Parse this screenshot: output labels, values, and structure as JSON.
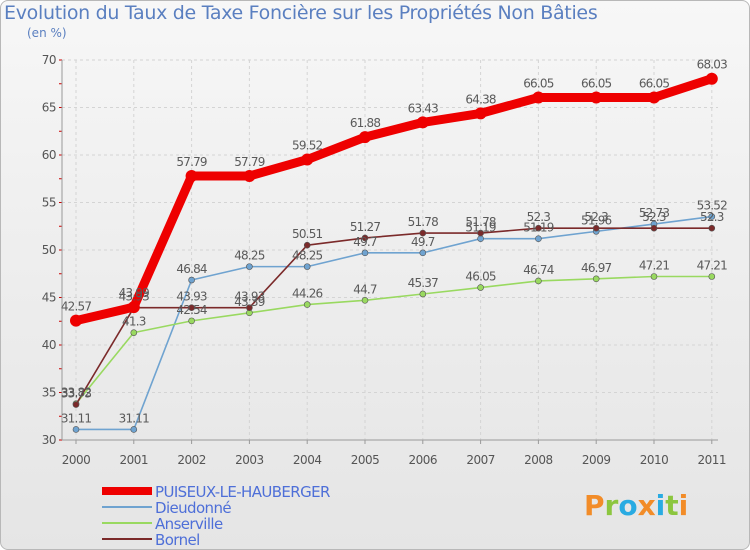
{
  "title": "Evolution du Taux de Taxe Foncière sur les Propriétés Non Bâties",
  "unit": "(en %)",
  "logo": {
    "letters": [
      "P",
      "r",
      "o",
      "x",
      "i",
      "t",
      "i"
    ],
    "colors": [
      "#f28c28",
      "#8cc63f",
      "#29abe2",
      "#f28c28",
      "#29abe2",
      "#8cc63f",
      "#f28c28"
    ]
  },
  "chart_data": {
    "type": "line",
    "title": "Evolution du Taux de Taxe Foncière sur les Propriétés Non Bâties",
    "ylabel": "(en %)",
    "xlabel": "",
    "x": [
      "2000",
      "2001",
      "2002",
      "2003",
      "2004",
      "2005",
      "2006",
      "2007",
      "2008",
      "2009",
      "2010",
      "2011"
    ],
    "ylim": [
      30,
      70
    ],
    "yticks": [
      30,
      35,
      40,
      45,
      50,
      55,
      60,
      65,
      70
    ],
    "grid": true,
    "series": [
      {
        "name": "Dieudonné",
        "color": "#6fa3d0",
        "values": [
          31.11,
          31.11,
          46.84,
          48.25,
          48.25,
          49.7,
          49.7,
          51.19,
          51.19,
          51.96,
          52.73,
          53.52
        ],
        "labels": [
          "31.11",
          "31.11",
          "46.84",
          "48.25",
          "48.25",
          "49.7",
          "49.7",
          "51.19",
          "51.19",
          "51.96",
          "52.73",
          "53.52"
        ]
      },
      {
        "name": "Anserville",
        "color": "#99d960",
        "values": [
          33.82,
          41.3,
          42.54,
          43.39,
          44.26,
          44.7,
          45.37,
          46.05,
          46.74,
          46.97,
          47.21,
          47.21
        ],
        "labels": [
          "33.82",
          "41.3",
          "42.54",
          "43.39",
          "44.26",
          "44.7",
          "45.37",
          "46.05",
          "46.74",
          "46.97",
          "47.21",
          "47.21"
        ]
      },
      {
        "name": "Bornel",
        "color": "#7b2a2a",
        "values": [
          33.73,
          43.93,
          43.93,
          43.93,
          50.51,
          51.27,
          51.78,
          51.78,
          52.3,
          52.3,
          52.3,
          52.3
        ],
        "labels": [
          "33.73",
          "43.93",
          "43.93",
          "43.93",
          "50.51",
          "51.27",
          "51.78",
          "51.78",
          "52.3",
          "52.3",
          "52.3",
          "52.3"
        ]
      },
      {
        "name": "PUISEUX-LE-HAUBERGER",
        "color": "#ee0000",
        "values": [
          42.57,
          43.99,
          57.79,
          57.79,
          59.52,
          61.88,
          63.43,
          64.38,
          66.05,
          66.05,
          66.05,
          68.03
        ],
        "labels": [
          "42.57",
          "43.99",
          "57.79",
          "57.79",
          "59.52",
          "61.88",
          "63.43",
          "64.38",
          "66.05",
          "66.05",
          "66.05",
          "68.03"
        ]
      }
    ],
    "legend": [
      {
        "name": "PUISEUX-LE-HAUBERGER",
        "color": "#ee0000",
        "weight": "heavy"
      },
      {
        "name": "Dieudonné",
        "color": "#6fa3d0",
        "weight": "thin"
      },
      {
        "name": "Anserville",
        "color": "#99d960",
        "weight": "thin"
      },
      {
        "name": "Bornel",
        "color": "#7b2a2a",
        "weight": "thin"
      }
    ],
    "legend_position": "bottom-left"
  }
}
